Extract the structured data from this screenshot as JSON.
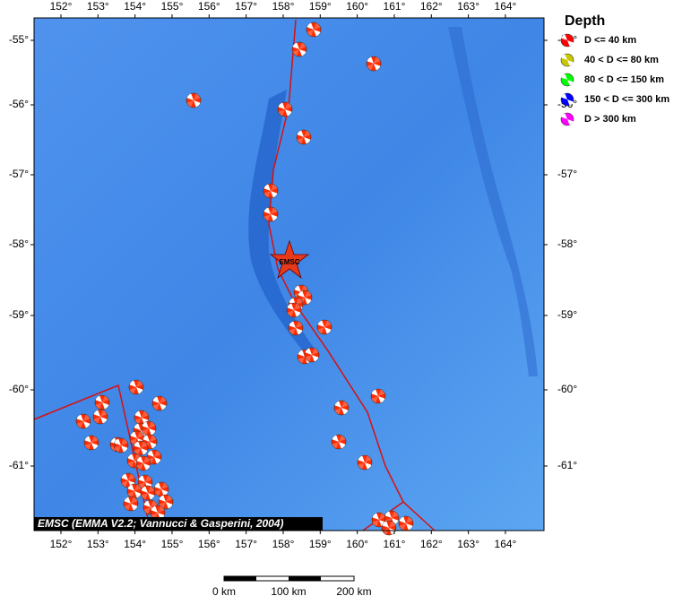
{
  "map": {
    "lon_labels": [
      "152°",
      "153°",
      "154°",
      "155°",
      "156°",
      "157°",
      "158°",
      "159°",
      "160°",
      "161°",
      "162°",
      "163°",
      "164°"
    ],
    "lat_labels": [
      "-55°",
      "-56°",
      "-57°",
      "-58°",
      "-59°",
      "-60°",
      "-61°"
    ],
    "legend": {
      "title": "Depth",
      "items": [
        {
          "label": "D <= 40 km",
          "color": "#ff0000"
        },
        {
          "label": "40 < D <= 80 km",
          "color": "#c8c800"
        },
        {
          "label": "80 < D <= 150 km",
          "color": "#00ff00"
        },
        {
          "label": "150 < D <= 300 km",
          "color": "#0000ff"
        },
        {
          "label": "D > 300 km",
          "color": "#ff00ff"
        }
      ]
    },
    "star_label": "EMSC",
    "credit": "EMSC (EMMA V2.2; Vannucci & Gasperini, 2004)",
    "scale_labels": [
      "0 km",
      "100 km",
      "200 km"
    ]
  }
}
